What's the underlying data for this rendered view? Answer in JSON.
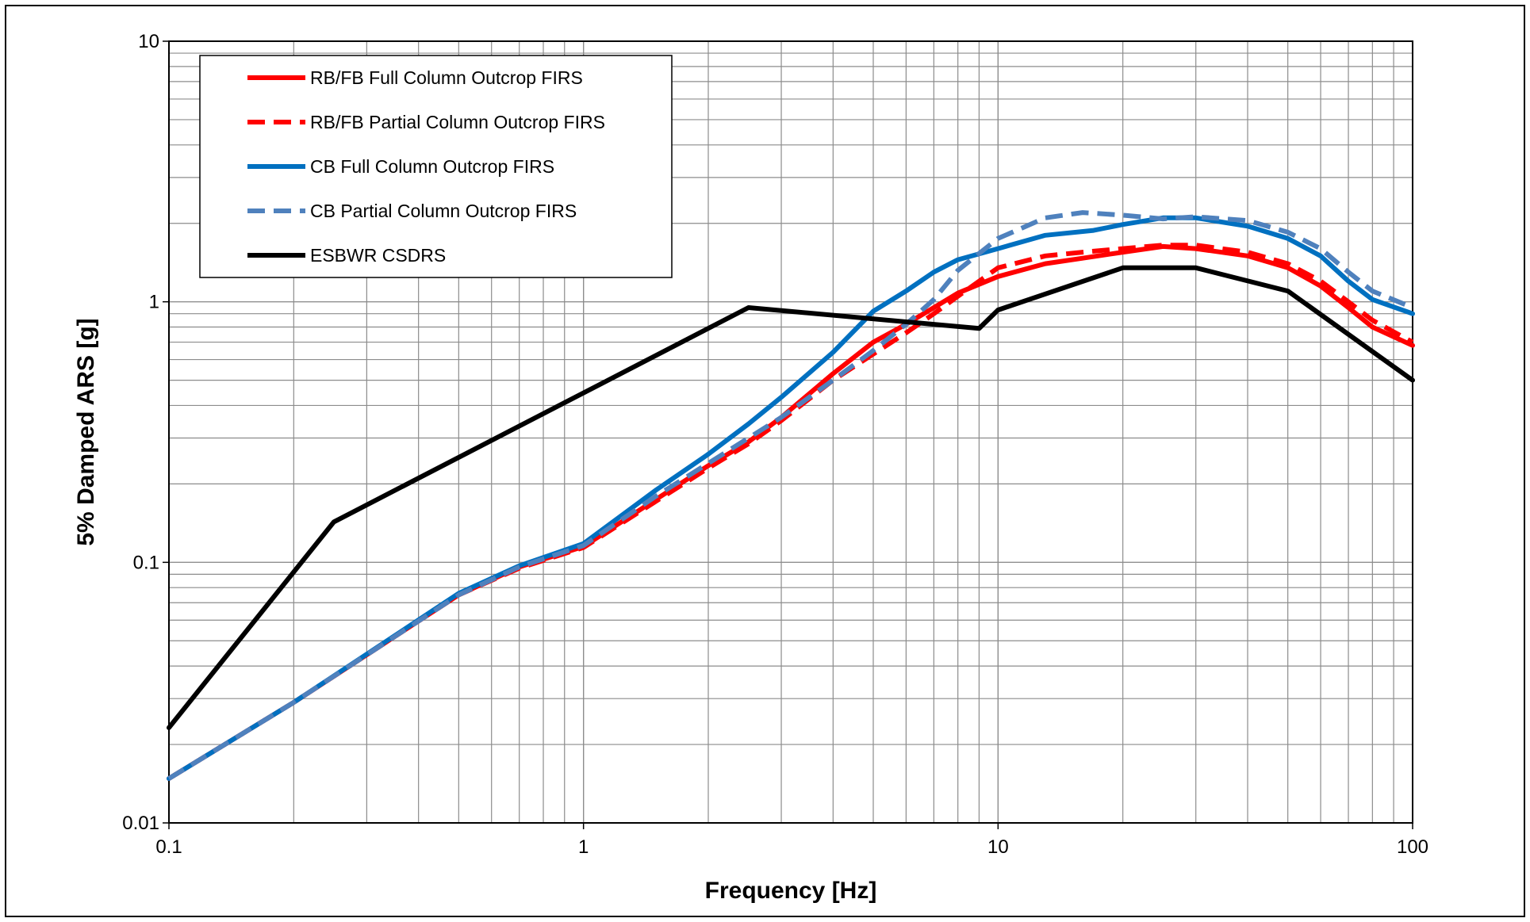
{
  "chart_data": {
    "type": "line",
    "xlabel": "Frequency [Hz]",
    "ylabel": "5% Damped ARS [g]",
    "xscale": "log",
    "yscale": "log",
    "xlim": [
      0.1,
      100
    ],
    "ylim": [
      0.01,
      10
    ],
    "x_ticks": [
      "0.1",
      "1",
      "10",
      "100"
    ],
    "y_ticks": [
      "0.01",
      "0.1",
      "1",
      "10"
    ],
    "grid": true,
    "legend_position": "top-left",
    "series": [
      {
        "name": "RB/FB Full Column Outcrop FIRS",
        "color": "#ff0000",
        "dash": "solid",
        "points": [
          [
            0.1,
            0.0148
          ],
          [
            0.2,
            0.029
          ],
          [
            0.5,
            0.075
          ],
          [
            0.7,
            0.096
          ],
          [
            1.0,
            0.115
          ],
          [
            1.5,
            0.175
          ],
          [
            2.0,
            0.235
          ],
          [
            2.5,
            0.29
          ],
          [
            3.0,
            0.36
          ],
          [
            4.0,
            0.53
          ],
          [
            5.0,
            0.7
          ],
          [
            6.0,
            0.82
          ],
          [
            7.0,
            0.95
          ],
          [
            8.0,
            1.08
          ],
          [
            10.0,
            1.25
          ],
          [
            13.0,
            1.4
          ],
          [
            16.0,
            1.47
          ],
          [
            20.0,
            1.55
          ],
          [
            25.0,
            1.63
          ],
          [
            30.0,
            1.6
          ],
          [
            40.0,
            1.5
          ],
          [
            50.0,
            1.35
          ],
          [
            60.0,
            1.15
          ],
          [
            70.0,
            0.95
          ],
          [
            80.0,
            0.8
          ],
          [
            100.0,
            0.68
          ]
        ]
      },
      {
        "name": "RB/FB Partial Column Outcrop FIRS",
        "color": "#ff0000",
        "dash": "dashed",
        "points": [
          [
            0.1,
            0.0148
          ],
          [
            0.2,
            0.029
          ],
          [
            0.5,
            0.075
          ],
          [
            0.7,
            0.095
          ],
          [
            1.0,
            0.114
          ],
          [
            1.5,
            0.172
          ],
          [
            2.0,
            0.23
          ],
          [
            2.5,
            0.285
          ],
          [
            3.0,
            0.35
          ],
          [
            4.0,
            0.5
          ],
          [
            5.0,
            0.63
          ],
          [
            6.0,
            0.76
          ],
          [
            7.0,
            0.9
          ],
          [
            8.0,
            1.05
          ],
          [
            10.0,
            1.35
          ],
          [
            13.0,
            1.5
          ],
          [
            16.0,
            1.55
          ],
          [
            20.0,
            1.6
          ],
          [
            25.0,
            1.65
          ],
          [
            30.0,
            1.65
          ],
          [
            40.0,
            1.55
          ],
          [
            50.0,
            1.4
          ],
          [
            60.0,
            1.2
          ],
          [
            70.0,
            1.0
          ],
          [
            80.0,
            0.85
          ],
          [
            100.0,
            0.7
          ]
        ]
      },
      {
        "name": "CB Full Column Outcrop FIRS",
        "color": "#0070c0",
        "dash": "solid",
        "points": [
          [
            0.1,
            0.0148
          ],
          [
            0.2,
            0.029
          ],
          [
            0.5,
            0.076
          ],
          [
            0.7,
            0.097
          ],
          [
            1.0,
            0.118
          ],
          [
            1.5,
            0.19
          ],
          [
            2.0,
            0.26
          ],
          [
            2.5,
            0.34
          ],
          [
            3.0,
            0.43
          ],
          [
            4.0,
            0.64
          ],
          [
            5.0,
            0.92
          ],
          [
            6.0,
            1.1
          ],
          [
            7.0,
            1.3
          ],
          [
            8.0,
            1.45
          ],
          [
            10.0,
            1.6
          ],
          [
            13.0,
            1.8
          ],
          [
            17.0,
            1.88
          ],
          [
            20.0,
            1.98
          ],
          [
            25.0,
            2.1
          ],
          [
            30.0,
            2.1
          ],
          [
            40.0,
            1.95
          ],
          [
            50.0,
            1.75
          ],
          [
            60.0,
            1.5
          ],
          [
            70.0,
            1.2
          ],
          [
            80.0,
            1.02
          ],
          [
            100.0,
            0.9
          ]
        ]
      },
      {
        "name": "CB Partial Column Outcrop FIRS",
        "color": "#4f81bd",
        "dash": "dashed",
        "points": [
          [
            0.1,
            0.0148
          ],
          [
            0.2,
            0.029
          ],
          [
            0.5,
            0.075
          ],
          [
            0.7,
            0.096
          ],
          [
            1.0,
            0.116
          ],
          [
            1.5,
            0.18
          ],
          [
            2.0,
            0.24
          ],
          [
            2.5,
            0.3
          ],
          [
            3.0,
            0.36
          ],
          [
            4.0,
            0.5
          ],
          [
            5.0,
            0.65
          ],
          [
            6.0,
            0.82
          ],
          [
            7.0,
            1.02
          ],
          [
            8.0,
            1.32
          ],
          [
            10.0,
            1.75
          ],
          [
            13.0,
            2.1
          ],
          [
            16.0,
            2.2
          ],
          [
            20.0,
            2.15
          ],
          [
            25.0,
            2.08
          ],
          [
            30.0,
            2.12
          ],
          [
            40.0,
            2.05
          ],
          [
            50.0,
            1.85
          ],
          [
            60.0,
            1.6
          ],
          [
            70.0,
            1.3
          ],
          [
            80.0,
            1.1
          ],
          [
            100.0,
            0.95
          ]
        ]
      },
      {
        "name": "ESBWR CSDRS",
        "color": "#000000",
        "dash": "solid",
        "points": [
          [
            0.1,
            0.0232
          ],
          [
            0.25,
            0.143
          ],
          [
            2.5,
            0.95
          ],
          [
            9.0,
            0.79
          ],
          [
            10.0,
            0.93
          ],
          [
            20.0,
            1.35
          ],
          [
            30.0,
            1.35
          ],
          [
            50.0,
            1.1
          ],
          [
            100.0,
            0.5
          ]
        ]
      }
    ]
  }
}
